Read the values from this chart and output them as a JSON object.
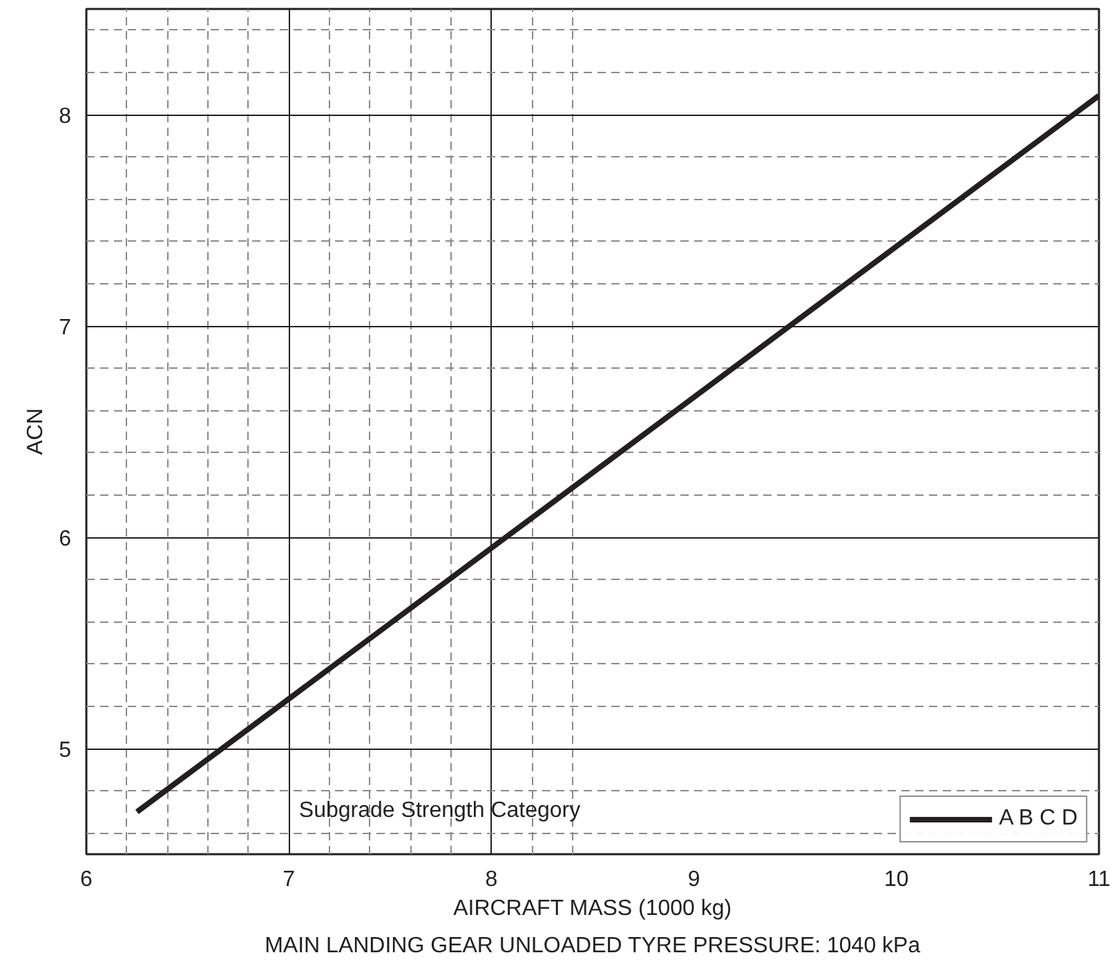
{
  "chart_data": {
    "type": "line",
    "xlabel": "AIRCRAFT MASS (1000 kg)",
    "ylabel": "ACN",
    "legend_title": "Subgrade Strength Category",
    "annotations": [
      "MAIN LANDING GEAR UNLOADED TYRE PRESSURE: 1040 kPa"
    ],
    "xlim": [
      6,
      11
    ],
    "ylim": [
      4.5,
      8.5
    ],
    "xticks": [
      6,
      7,
      8,
      9,
      10,
      11
    ],
    "yticks": [
      5,
      6,
      7,
      8
    ],
    "grid": true,
    "legend": "bottom right",
    "series": [
      {
        "name": "A B C D",
        "color": "#231f20",
        "x": [
          6.25,
          11.0
        ],
        "values": [
          4.7,
          8.09
        ]
      }
    ]
  }
}
